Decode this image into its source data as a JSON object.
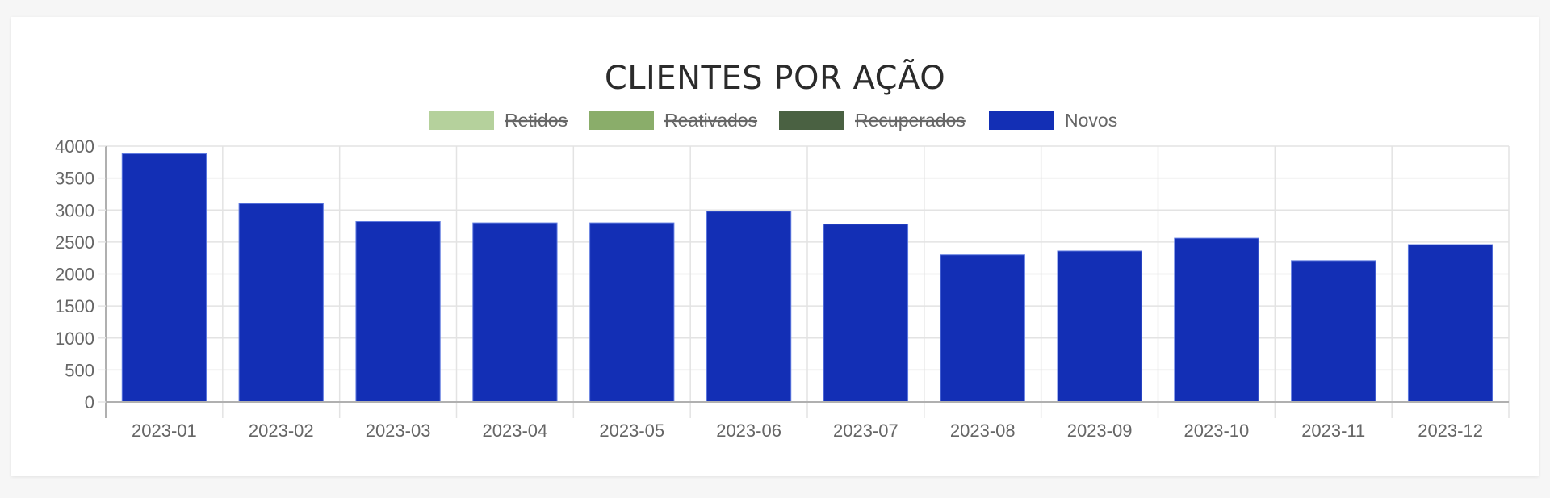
{
  "chart_data": {
    "type": "bar",
    "title": "CLIENTES POR AÇÃO",
    "xlabel": "",
    "ylabel": "",
    "ylim": [
      0,
      4000
    ],
    "y_ticks": [
      0,
      500,
      1000,
      1500,
      2000,
      2500,
      3000,
      3500,
      4000
    ],
    "grid": true,
    "legend_position": "top",
    "categories": [
      "2023-01",
      "2023-02",
      "2023-03",
      "2023-04",
      "2023-05",
      "2023-06",
      "2023-07",
      "2023-08",
      "2023-09",
      "2023-10",
      "2023-11",
      "2023-12"
    ],
    "series": [
      {
        "name": "Retidos",
        "color": "#b5d19c",
        "hidden": true,
        "values": []
      },
      {
        "name": "Reativados",
        "color": "#8aad6a",
        "hidden": true,
        "values": []
      },
      {
        "name": "Recuperados",
        "color": "#4a6142",
        "hidden": true,
        "values": []
      },
      {
        "name": "Novos",
        "color": "#132fb5",
        "hidden": false,
        "values": [
          3880,
          3100,
          2820,
          2800,
          2800,
          2980,
          2780,
          2300,
          2360,
          2560,
          2210,
          2460
        ]
      }
    ]
  }
}
